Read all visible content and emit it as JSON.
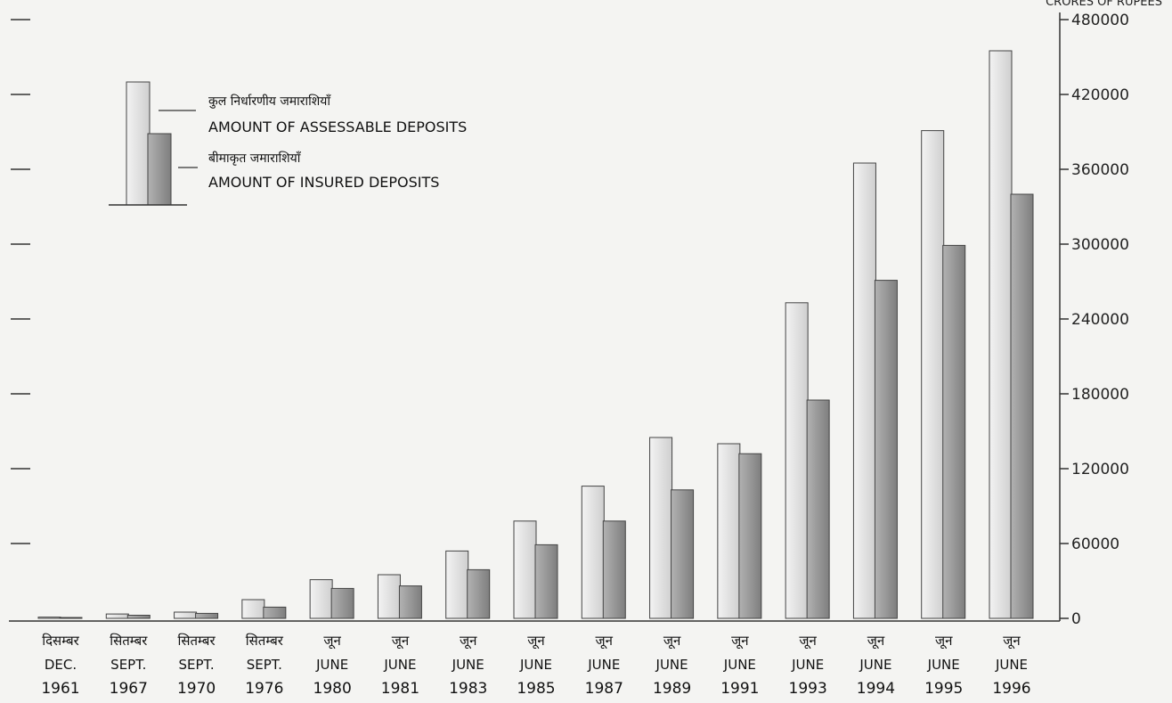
{
  "chart_data": {
    "type": "bar",
    "y_unit_label": "CRORES OF RUPEES",
    "ylim": [
      0,
      480000
    ],
    "yticks": [
      "480000",
      "420000",
      "360000",
      "300000",
      "240000",
      "180000",
      "120000",
      "60000",
      "0"
    ],
    "ytick_values": [
      480000,
      420000,
      360000,
      300000,
      240000,
      180000,
      120000,
      60000,
      0
    ],
    "y_axis_side": "right",
    "grid": false,
    "legend_placement": "top-left",
    "categories": [
      {
        "hi": "दिसम्बर",
        "en": "DEC.",
        "year": "1961"
      },
      {
        "hi": "सितम्बर",
        "en": "SEPT.",
        "year": "1967"
      },
      {
        "hi": "सितम्बर",
        "en": "SEPT.",
        "year": "1970"
      },
      {
        "hi": "सितम्बर",
        "en": "SEPT.",
        "year": "1976"
      },
      {
        "hi": "जून",
        "en": "JUNE",
        "year": "1980"
      },
      {
        "hi": "जून",
        "en": "JUNE",
        "year": "1981"
      },
      {
        "hi": "जून",
        "en": "JUNE",
        "year": "1983"
      },
      {
        "hi": "जून",
        "en": "JUNE",
        "year": "1985"
      },
      {
        "hi": "जून",
        "en": "JUNE",
        "year": "1987"
      },
      {
        "hi": "जून",
        "en": "JUNE",
        "year": "1989"
      },
      {
        "hi": "जून",
        "en": "JUNE",
        "year": "1991"
      },
      {
        "hi": "जून",
        "en": "JUNE",
        "year": "1993"
      },
      {
        "hi": "जून",
        "en": "JUNE",
        "year": "1994"
      },
      {
        "hi": "जून",
        "en": "JUNE",
        "year": "1995"
      },
      {
        "hi": "जून",
        "en": "JUNE",
        "year": "1996"
      }
    ],
    "series": [
      {
        "name_hi": "कुल निर्धारणीय जमाराशियाँ",
        "name": "AMOUNT OF ASSESSABLE DEPOSITS",
        "color": "#dcdcdc",
        "values": [
          1000,
          3500,
          5000,
          15000,
          31000,
          35000,
          54000,
          78000,
          106000,
          145000,
          140000,
          253000,
          365000,
          391000,
          455000
        ]
      },
      {
        "name_hi": "बीमाकृत जमाराशियाँ",
        "name": "AMOUNT OF INSURED DEPOSITS",
        "color": "#9c9c9c",
        "values": [
          700,
          2500,
          4000,
          9000,
          24000,
          26000,
          39000,
          59000,
          78000,
          103000,
          132000,
          175000,
          271000,
          299000,
          340000
        ]
      }
    ]
  }
}
